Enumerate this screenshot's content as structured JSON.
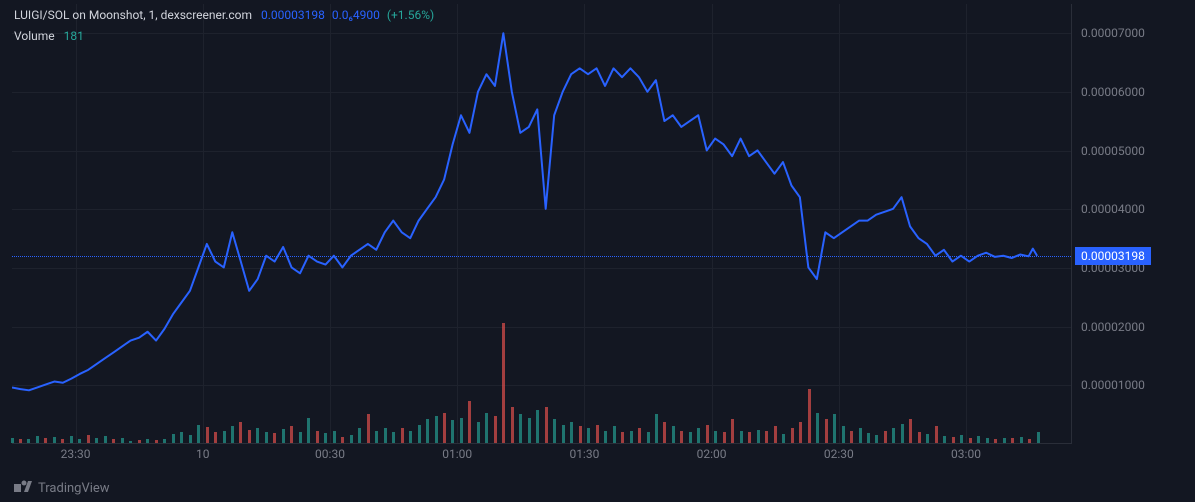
{
  "header": {
    "pair_text": "LUIGI/SOL on Moonshot, 1, dexscreener.com",
    "price": "0.00003198",
    "change": "0.0₆4900",
    "pct": "(+1.56%)",
    "volume_label": "Volume",
    "volume_value": "181"
  },
  "footer": {
    "brand": "TradingView"
  },
  "chart": {
    "type": "line+volume",
    "background_color": "#131722",
    "grid_color": "#1e222d",
    "border_color": "#2a2e39",
    "line_color": "#2962ff",
    "line_width": 2,
    "current_price": 3.198e-05,
    "current_price_label": "0.00003198",
    "price_tag_bg": "#2962ff",
    "y": {
      "min": 0,
      "max": 7.5e-05,
      "ticks": [
        {
          "v": 1e-05,
          "label": "0.00001000"
        },
        {
          "v": 2e-05,
          "label": "0.00002000"
        },
        {
          "v": 3e-05,
          "label": "0.00003000"
        },
        {
          "v": 4e-05,
          "label": "0.00004000"
        },
        {
          "v": 5e-05,
          "label": "0.00005000"
        },
        {
          "v": 6e-05,
          "label": "0.00006000"
        },
        {
          "v": 7e-05,
          "label": "0.00007000"
        }
      ],
      "tick_color": "#787b86",
      "tick_fontsize": 12
    },
    "x": {
      "min": 0,
      "max": 250,
      "ticks": [
        {
          "t": 15,
          "label": "23:30"
        },
        {
          "t": 45,
          "label": "10"
        },
        {
          "t": 75,
          "label": "00:30"
        },
        {
          "t": 105,
          "label": "01:00"
        },
        {
          "t": 135,
          "label": "01:30"
        },
        {
          "t": 165,
          "label": "02:00"
        },
        {
          "t": 195,
          "label": "02:30"
        },
        {
          "t": 225,
          "label": "03:00"
        }
      ],
      "tick_color": "#787b86",
      "tick_fontsize": 12
    },
    "series": [
      {
        "t": 0,
        "p": 9.5e-06
      },
      {
        "t": 2,
        "p": 9.2e-06
      },
      {
        "t": 4,
        "p": 9e-06
      },
      {
        "t": 6,
        "p": 9.5e-06
      },
      {
        "t": 8,
        "p": 1e-05
      },
      {
        "t": 10,
        "p": 1.05e-05
      },
      {
        "t": 12,
        "p": 1.03e-05
      },
      {
        "t": 14,
        "p": 1.1e-05
      },
      {
        "t": 16,
        "p": 1.18e-05
      },
      {
        "t": 18,
        "p": 1.25e-05
      },
      {
        "t": 20,
        "p": 1.35e-05
      },
      {
        "t": 22,
        "p": 1.45e-05
      },
      {
        "t": 24,
        "p": 1.55e-05
      },
      {
        "t": 26,
        "p": 1.65e-05
      },
      {
        "t": 28,
        "p": 1.75e-05
      },
      {
        "t": 30,
        "p": 1.8e-05
      },
      {
        "t": 32,
        "p": 1.9e-05
      },
      {
        "t": 34,
        "p": 1.75e-05
      },
      {
        "t": 36,
        "p": 1.95e-05
      },
      {
        "t": 38,
        "p": 2.2e-05
      },
      {
        "t": 40,
        "p": 2.4e-05
      },
      {
        "t": 42,
        "p": 2.6e-05
      },
      {
        "t": 44,
        "p": 3e-05
      },
      {
        "t": 46,
        "p": 3.4e-05
      },
      {
        "t": 48,
        "p": 3.1e-05
      },
      {
        "t": 50,
        "p": 3e-05
      },
      {
        "t": 52,
        "p": 3.6e-05
      },
      {
        "t": 54,
        "p": 3.1e-05
      },
      {
        "t": 56,
        "p": 2.6e-05
      },
      {
        "t": 58,
        "p": 2.8e-05
      },
      {
        "t": 60,
        "p": 3.2e-05
      },
      {
        "t": 62,
        "p": 3.1e-05
      },
      {
        "t": 64,
        "p": 3.35e-05
      },
      {
        "t": 66,
        "p": 3e-05
      },
      {
        "t": 68,
        "p": 2.9e-05
      },
      {
        "t": 70,
        "p": 3.2e-05
      },
      {
        "t": 72,
        "p": 3.1e-05
      },
      {
        "t": 74,
        "p": 3.05e-05
      },
      {
        "t": 76,
        "p": 3.2e-05
      },
      {
        "t": 78,
        "p": 3e-05
      },
      {
        "t": 80,
        "p": 3.2e-05
      },
      {
        "t": 82,
        "p": 3.3e-05
      },
      {
        "t": 84,
        "p": 3.4e-05
      },
      {
        "t": 86,
        "p": 3.3e-05
      },
      {
        "t": 88,
        "p": 3.6e-05
      },
      {
        "t": 90,
        "p": 3.8e-05
      },
      {
        "t": 92,
        "p": 3.6e-05
      },
      {
        "t": 94,
        "p": 3.5e-05
      },
      {
        "t": 96,
        "p": 3.8e-05
      },
      {
        "t": 98,
        "p": 4e-05
      },
      {
        "t": 100,
        "p": 4.2e-05
      },
      {
        "t": 102,
        "p": 4.5e-05
      },
      {
        "t": 104,
        "p": 5.1e-05
      },
      {
        "t": 106,
        "p": 5.6e-05
      },
      {
        "t": 108,
        "p": 5.3e-05
      },
      {
        "t": 110,
        "p": 6e-05
      },
      {
        "t": 112,
        "p": 6.3e-05
      },
      {
        "t": 114,
        "p": 6.1e-05
      },
      {
        "t": 116,
        "p": 7e-05
      },
      {
        "t": 118,
        "p": 6e-05
      },
      {
        "t": 120,
        "p": 5.3e-05
      },
      {
        "t": 122,
        "p": 5.4e-05
      },
      {
        "t": 124,
        "p": 5.7e-05
      },
      {
        "t": 126,
        "p": 4e-05
      },
      {
        "t": 128,
        "p": 5.6e-05
      },
      {
        "t": 130,
        "p": 6e-05
      },
      {
        "t": 132,
        "p": 6.3e-05
      },
      {
        "t": 134,
        "p": 6.4e-05
      },
      {
        "t": 136,
        "p": 6.3e-05
      },
      {
        "t": 138,
        "p": 6.4e-05
      },
      {
        "t": 140,
        "p": 6.1e-05
      },
      {
        "t": 142,
        "p": 6.4e-05
      },
      {
        "t": 144,
        "p": 6.25e-05
      },
      {
        "t": 146,
        "p": 6.4e-05
      },
      {
        "t": 148,
        "p": 6.25e-05
      },
      {
        "t": 150,
        "p": 6e-05
      },
      {
        "t": 152,
        "p": 6.2e-05
      },
      {
        "t": 154,
        "p": 5.5e-05
      },
      {
        "t": 156,
        "p": 5.6e-05
      },
      {
        "t": 158,
        "p": 5.4e-05
      },
      {
        "t": 160,
        "p": 5.5e-05
      },
      {
        "t": 162,
        "p": 5.6e-05
      },
      {
        "t": 164,
        "p": 5e-05
      },
      {
        "t": 166,
        "p": 5.2e-05
      },
      {
        "t": 168,
        "p": 5.1e-05
      },
      {
        "t": 170,
        "p": 4.9e-05
      },
      {
        "t": 172,
        "p": 5.2e-05
      },
      {
        "t": 174,
        "p": 4.9e-05
      },
      {
        "t": 176,
        "p": 5e-05
      },
      {
        "t": 178,
        "p": 4.8e-05
      },
      {
        "t": 180,
        "p": 4.6e-05
      },
      {
        "t": 182,
        "p": 4.8e-05
      },
      {
        "t": 184,
        "p": 4.4e-05
      },
      {
        "t": 186,
        "p": 4.2e-05
      },
      {
        "t": 188,
        "p": 3e-05
      },
      {
        "t": 190,
        "p": 2.8e-05
      },
      {
        "t": 192,
        "p": 3.6e-05
      },
      {
        "t": 194,
        "p": 3.5e-05
      },
      {
        "t": 196,
        "p": 3.6e-05
      },
      {
        "t": 198,
        "p": 3.7e-05
      },
      {
        "t": 200,
        "p": 3.8e-05
      },
      {
        "t": 202,
        "p": 3.8e-05
      },
      {
        "t": 204,
        "p": 3.9e-05
      },
      {
        "t": 206,
        "p": 3.95e-05
      },
      {
        "t": 208,
        "p": 4e-05
      },
      {
        "t": 210,
        "p": 4.2e-05
      },
      {
        "t": 212,
        "p": 3.7e-05
      },
      {
        "t": 214,
        "p": 3.5e-05
      },
      {
        "t": 216,
        "p": 3.4e-05
      },
      {
        "t": 218,
        "p": 3.2e-05
      },
      {
        "t": 220,
        "p": 3.3e-05
      },
      {
        "t": 222,
        "p": 3.1e-05
      },
      {
        "t": 224,
        "p": 3.2e-05
      },
      {
        "t": 226,
        "p": 3.1e-05
      },
      {
        "t": 228,
        "p": 3.2e-05
      },
      {
        "t": 230,
        "p": 3.25e-05
      },
      {
        "t": 232,
        "p": 3.18e-05
      },
      {
        "t": 234,
        "p": 3.2e-05
      },
      {
        "t": 236,
        "p": 3.16e-05
      },
      {
        "t": 238,
        "p": 3.22e-05
      },
      {
        "t": 240,
        "p": 3.19e-05
      },
      {
        "t": 241,
        "p": 3.32e-05
      },
      {
        "t": 242,
        "p": 3.198e-05
      }
    ],
    "volume": {
      "max": 2000,
      "up_color": "#26a69a",
      "down_color": "#ef5350",
      "opacity": 0.65,
      "bars": [
        {
          "t": 0,
          "v": 80,
          "d": "u"
        },
        {
          "t": 2,
          "v": 60,
          "d": "d"
        },
        {
          "t": 4,
          "v": 70,
          "d": "u"
        },
        {
          "t": 6,
          "v": 120,
          "d": "u"
        },
        {
          "t": 8,
          "v": 90,
          "d": "d"
        },
        {
          "t": 10,
          "v": 100,
          "d": "u"
        },
        {
          "t": 12,
          "v": 60,
          "d": "d"
        },
        {
          "t": 14,
          "v": 110,
          "d": "u"
        },
        {
          "t": 16,
          "v": 70,
          "d": "u"
        },
        {
          "t": 18,
          "v": 130,
          "d": "d"
        },
        {
          "t": 20,
          "v": 80,
          "d": "u"
        },
        {
          "t": 22,
          "v": 120,
          "d": "u"
        },
        {
          "t": 24,
          "v": 60,
          "d": "d"
        },
        {
          "t": 26,
          "v": 90,
          "d": "u"
        },
        {
          "t": 28,
          "v": 40,
          "d": "u"
        },
        {
          "t": 30,
          "v": 50,
          "d": "d"
        },
        {
          "t": 32,
          "v": 60,
          "d": "u"
        },
        {
          "t": 34,
          "v": 50,
          "d": "d"
        },
        {
          "t": 36,
          "v": 70,
          "d": "u"
        },
        {
          "t": 38,
          "v": 150,
          "d": "u"
        },
        {
          "t": 40,
          "v": 180,
          "d": "u"
        },
        {
          "t": 42,
          "v": 140,
          "d": "u"
        },
        {
          "t": 44,
          "v": 300,
          "d": "u"
        },
        {
          "t": 46,
          "v": 260,
          "d": "d"
        },
        {
          "t": 48,
          "v": 180,
          "d": "d"
        },
        {
          "t": 50,
          "v": 200,
          "d": "u"
        },
        {
          "t": 52,
          "v": 280,
          "d": "u"
        },
        {
          "t": 54,
          "v": 350,
          "d": "d"
        },
        {
          "t": 56,
          "v": 220,
          "d": "d"
        },
        {
          "t": 58,
          "v": 250,
          "d": "u"
        },
        {
          "t": 60,
          "v": 180,
          "d": "u"
        },
        {
          "t": 62,
          "v": 160,
          "d": "d"
        },
        {
          "t": 64,
          "v": 240,
          "d": "u"
        },
        {
          "t": 66,
          "v": 280,
          "d": "d"
        },
        {
          "t": 68,
          "v": 180,
          "d": "u"
        },
        {
          "t": 70,
          "v": 420,
          "d": "u"
        },
        {
          "t": 72,
          "v": 200,
          "d": "d"
        },
        {
          "t": 74,
          "v": 160,
          "d": "u"
        },
        {
          "t": 76,
          "v": 200,
          "d": "u"
        },
        {
          "t": 78,
          "v": 100,
          "d": "d"
        },
        {
          "t": 80,
          "v": 130,
          "d": "u"
        },
        {
          "t": 82,
          "v": 250,
          "d": "u"
        },
        {
          "t": 84,
          "v": 480,
          "d": "d"
        },
        {
          "t": 86,
          "v": 200,
          "d": "u"
        },
        {
          "t": 88,
          "v": 250,
          "d": "u"
        },
        {
          "t": 90,
          "v": 180,
          "d": "u"
        },
        {
          "t": 92,
          "v": 250,
          "d": "d"
        },
        {
          "t": 94,
          "v": 200,
          "d": "u"
        },
        {
          "t": 96,
          "v": 300,
          "d": "u"
        },
        {
          "t": 98,
          "v": 400,
          "d": "u"
        },
        {
          "t": 100,
          "v": 450,
          "d": "u"
        },
        {
          "t": 102,
          "v": 500,
          "d": "d"
        },
        {
          "t": 104,
          "v": 380,
          "d": "u"
        },
        {
          "t": 106,
          "v": 420,
          "d": "u"
        },
        {
          "t": 108,
          "v": 700,
          "d": "d"
        },
        {
          "t": 110,
          "v": 350,
          "d": "u"
        },
        {
          "t": 112,
          "v": 500,
          "d": "u"
        },
        {
          "t": 114,
          "v": 450,
          "d": "d"
        },
        {
          "t": 116,
          "v": 2000,
          "d": "d"
        },
        {
          "t": 118,
          "v": 600,
          "d": "d"
        },
        {
          "t": 120,
          "v": 480,
          "d": "u"
        },
        {
          "t": 122,
          "v": 420,
          "d": "u"
        },
        {
          "t": 124,
          "v": 550,
          "d": "u"
        },
        {
          "t": 126,
          "v": 600,
          "d": "d"
        },
        {
          "t": 128,
          "v": 400,
          "d": "u"
        },
        {
          "t": 130,
          "v": 300,
          "d": "u"
        },
        {
          "t": 132,
          "v": 350,
          "d": "u"
        },
        {
          "t": 134,
          "v": 280,
          "d": "d"
        },
        {
          "t": 136,
          "v": 250,
          "d": "u"
        },
        {
          "t": 138,
          "v": 300,
          "d": "d"
        },
        {
          "t": 140,
          "v": 200,
          "d": "u"
        },
        {
          "t": 142,
          "v": 280,
          "d": "u"
        },
        {
          "t": 144,
          "v": 180,
          "d": "d"
        },
        {
          "t": 146,
          "v": 200,
          "d": "u"
        },
        {
          "t": 148,
          "v": 250,
          "d": "d"
        },
        {
          "t": 150,
          "v": 180,
          "d": "u"
        },
        {
          "t": 152,
          "v": 480,
          "d": "u"
        },
        {
          "t": 154,
          "v": 350,
          "d": "d"
        },
        {
          "t": 156,
          "v": 280,
          "d": "u"
        },
        {
          "t": 158,
          "v": 200,
          "d": "d"
        },
        {
          "t": 160,
          "v": 180,
          "d": "u"
        },
        {
          "t": 162,
          "v": 250,
          "d": "u"
        },
        {
          "t": 164,
          "v": 300,
          "d": "d"
        },
        {
          "t": 166,
          "v": 200,
          "d": "u"
        },
        {
          "t": 168,
          "v": 180,
          "d": "d"
        },
        {
          "t": 170,
          "v": 400,
          "d": "d"
        },
        {
          "t": 172,
          "v": 200,
          "d": "u"
        },
        {
          "t": 174,
          "v": 180,
          "d": "d"
        },
        {
          "t": 176,
          "v": 220,
          "d": "u"
        },
        {
          "t": 178,
          "v": 200,
          "d": "d"
        },
        {
          "t": 180,
          "v": 280,
          "d": "d"
        },
        {
          "t": 182,
          "v": 150,
          "d": "u"
        },
        {
          "t": 184,
          "v": 250,
          "d": "d"
        },
        {
          "t": 186,
          "v": 350,
          "d": "d"
        },
        {
          "t": 188,
          "v": 900,
          "d": "d"
        },
        {
          "t": 190,
          "v": 500,
          "d": "u"
        },
        {
          "t": 192,
          "v": 400,
          "d": "d"
        },
        {
          "t": 194,
          "v": 480,
          "d": "u"
        },
        {
          "t": 196,
          "v": 280,
          "d": "u"
        },
        {
          "t": 198,
          "v": 200,
          "d": "d"
        },
        {
          "t": 200,
          "v": 250,
          "d": "u"
        },
        {
          "t": 202,
          "v": 160,
          "d": "u"
        },
        {
          "t": 204,
          "v": 140,
          "d": "u"
        },
        {
          "t": 206,
          "v": 200,
          "d": "d"
        },
        {
          "t": 208,
          "v": 250,
          "d": "u"
        },
        {
          "t": 210,
          "v": 320,
          "d": "u"
        },
        {
          "t": 212,
          "v": 400,
          "d": "d"
        },
        {
          "t": 214,
          "v": 180,
          "d": "d"
        },
        {
          "t": 216,
          "v": 150,
          "d": "u"
        },
        {
          "t": 218,
          "v": 280,
          "d": "d"
        },
        {
          "t": 220,
          "v": 120,
          "d": "u"
        },
        {
          "t": 222,
          "v": 100,
          "d": "d"
        },
        {
          "t": 224,
          "v": 130,
          "d": "u"
        },
        {
          "t": 226,
          "v": 90,
          "d": "d"
        },
        {
          "t": 228,
          "v": 110,
          "d": "u"
        },
        {
          "t": 230,
          "v": 80,
          "d": "u"
        },
        {
          "t": 232,
          "v": 70,
          "d": "d"
        },
        {
          "t": 234,
          "v": 90,
          "d": "u"
        },
        {
          "t": 236,
          "v": 80,
          "d": "d"
        },
        {
          "t": 238,
          "v": 100,
          "d": "u"
        },
        {
          "t": 240,
          "v": 70,
          "d": "d"
        },
        {
          "t": 242,
          "v": 181,
          "d": "u"
        }
      ]
    }
  }
}
